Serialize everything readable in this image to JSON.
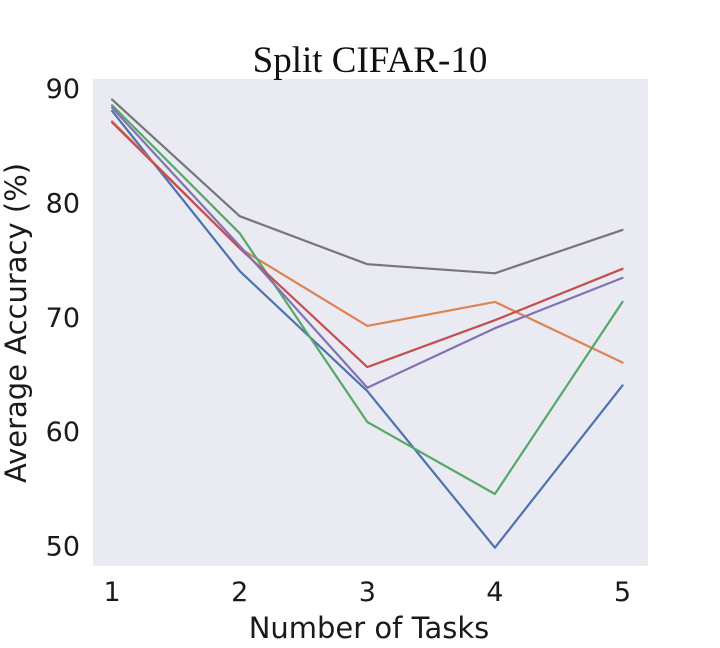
{
  "chart_data": {
    "type": "line",
    "title": "Split CIFAR-10",
    "xlabel": "Number of Tasks",
    "ylabel": "Average Accuracy (%)",
    "x": [
      1,
      2,
      3,
      4,
      5
    ],
    "xlim": [
      0.85,
      5.2
    ],
    "ylim": [
      48.2,
      90.8
    ],
    "yticks": [
      50,
      60,
      70,
      80,
      90
    ],
    "grid": false,
    "background": "#eaeaf2",
    "series": [
      {
        "color": "#4c72b0",
        "values": [
          88.0,
          74.0,
          63.5,
          49.8,
          64.0
        ]
      },
      {
        "color": "#dd8452",
        "values": [
          87.1,
          76.0,
          69.2,
          71.3,
          66.0
        ]
      },
      {
        "color": "#55a868",
        "values": [
          88.5,
          77.3,
          60.8,
          54.5,
          71.3
        ]
      },
      {
        "color": "#c44e52",
        "values": [
          87.0,
          76.0,
          65.6,
          69.7,
          74.2
        ]
      },
      {
        "color": "#8172b3",
        "values": [
          88.3,
          76.2,
          63.8,
          69.0,
          73.4
        ]
      },
      {
        "color": "#767676",
        "values": [
          89.0,
          78.8,
          74.6,
          73.8,
          77.6
        ]
      }
    ]
  }
}
